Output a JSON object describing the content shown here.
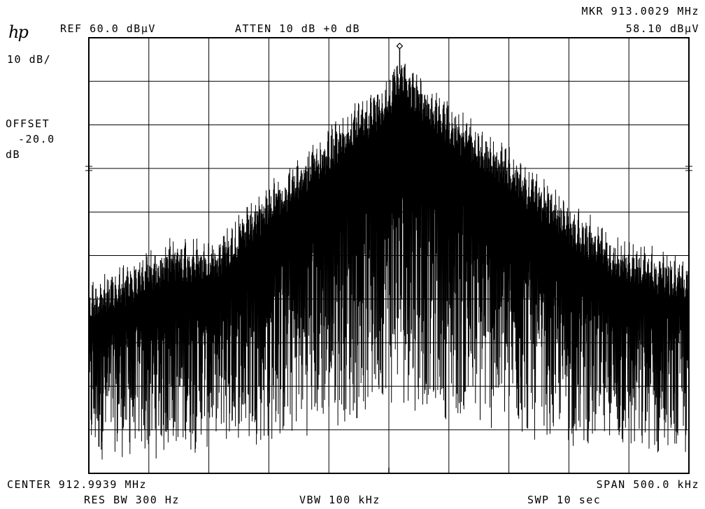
{
  "header": {
    "ref": "REF 60.0 dBμV",
    "atten": "ATTEN 10 dB +0 dB",
    "marker_freq": "MKR 913.0029 MHz",
    "marker_level": "58.10 dBμV",
    "logo": "hp"
  },
  "left_panel": {
    "scale": "10 dB/",
    "offset_label": "OFFSET",
    "offset_value": "-20.0",
    "offset_unit": "dB"
  },
  "footer": {
    "center": "CENTER 912.9939 MHz",
    "span": "SPAN 500.0 kHz",
    "res_bw": "RES BW 300 Hz",
    "vbw": "VBW 100 kHz",
    "swp": "SWP 10 sec"
  },
  "chart_data": {
    "type": "line",
    "title": "",
    "xlabel": "",
    "ylabel": "",
    "x_unit": "MHz",
    "y_unit": "dBμV",
    "xlim": [
      912.7439,
      913.2439
    ],
    "ylim": [
      -40.0,
      60.0
    ],
    "grid": true,
    "grid_divisions": {
      "x": 10,
      "y": 10
    },
    "marker": {
      "x": 913.0029,
      "y": 58.1
    },
    "series": [
      {
        "style": "dense spectral comb; line amplitude vs frequency",
        "x": [
          912.7439,
          912.7689,
          912.7939,
          912.8189,
          912.8439,
          912.8689,
          912.8939,
          912.9189,
          912.9439,
          912.9689,
          912.9939,
          913.0029,
          913.0189,
          913.0439,
          913.0689,
          913.0939,
          913.1189,
          913.1439,
          913.1689,
          913.1939,
          913.2189,
          913.2439
        ],
        "peak_envelope": [
          5,
          8,
          12,
          15,
          14,
          20,
          27,
          33,
          40,
          46,
          52,
          58.1,
          52,
          46,
          40,
          35,
          29,
          23,
          18,
          14,
          12,
          10
        ],
        "floor": [
          -37,
          -37,
          -37,
          -36,
          -35,
          -34,
          -33,
          -32,
          -30,
          -28,
          -25,
          -25,
          -26,
          -28,
          -30,
          -32,
          -33,
          -34,
          -35,
          -36,
          -37,
          -37
        ]
      }
    ]
  }
}
